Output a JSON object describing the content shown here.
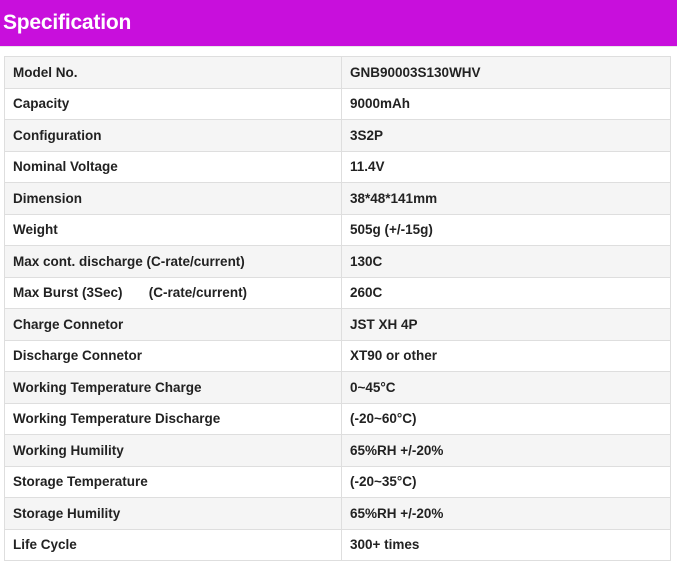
{
  "header": {
    "title": "Specification",
    "color": "#c80fdc"
  },
  "specs": [
    {
      "label": "Model No.",
      "value": "GNB90003S130WHV"
    },
    {
      "label": "Capacity",
      "value": "9000mAh"
    },
    {
      "label": "Configuration",
      "value": "3S2P"
    },
    {
      "label": "Nominal Voltage",
      "value": "11.4V"
    },
    {
      "label": "Dimension",
      "value": "38*48*141mm"
    },
    {
      "label": "Weight",
      "value": "505g (+/-15g)"
    },
    {
      "label": "Max cont. discharge (C-rate/current)",
      "value": "130C"
    },
    {
      "label": "Max Burst (3Sec)       (C-rate/current)",
      "value": "260C"
    },
    {
      "label": "Charge Connetor",
      "value": "JST XH 4P"
    },
    {
      "label": "Discharge Connetor",
      "value": "XT90 or other"
    },
    {
      "label": "Working Temperature Charge",
      "value": "0~45°C"
    },
    {
      "label": "Working Temperature Discharge",
      "value": "(-20~60°C)"
    },
    {
      "label": "Working Humility",
      "value": "65%RH +/-20%"
    },
    {
      "label": "Storage Temperature",
      "value": "(-20~35°C)"
    },
    {
      "label": "Storage Humility",
      "value": "65%RH +/-20%"
    },
    {
      "label": "Life Cycle",
      "value": "300+ times"
    }
  ]
}
